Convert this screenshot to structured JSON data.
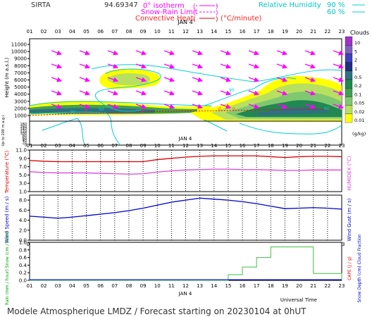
{
  "header": {
    "station": "SIRTA",
    "coord": "94.69347",
    "legend_isotherm": "0° isotherm",
    "legend_snow": "Snow-Rain Limit",
    "legend_conv": "Convective Heat.",
    "legend_unit": "(°C/minute)",
    "legend_rh": "Relative Humidity",
    "rh90": "90 %",
    "rh60": "60 %"
  },
  "hours": [
    "01",
    "02",
    "03",
    "04",
    "05",
    "06",
    "07",
    "08",
    "09",
    "10",
    "11",
    "12",
    "13",
    "14",
    "15",
    "16",
    "17",
    "18",
    "19",
    "20",
    "21",
    "22",
    "23"
  ],
  "date_label": "JAN 4",
  "footer": "Modele Atmospherique LMDZ / Forecast starting on 20230104 at 0hUT",
  "colors": {
    "temperature": "#dd0000",
    "humidex": "#dd44dd",
    "wind_speed": "#0000cc",
    "cloud_scale": [
      "#ffff00",
      "#b8e060",
      "#80c870",
      "#40a050",
      "#208850",
      "#307080",
      "#203080",
      "#4040c0",
      "#8060c0",
      "#a030d0"
    ],
    "isotherm": "#ff0000",
    "snow_rain": "#ff00ff",
    "rh": "#00d0d0",
    "precip": "#40c040"
  },
  "chart_data": [
    {
      "type": "heatmap",
      "name": "clouds",
      "xlabel": "",
      "ylabel": "Height (m a.s.l.)",
      "ylabel2": "Up to 200 m a.g.l.",
      "yticks": [
        1000,
        2000,
        3000,
        4000,
        5000,
        6000,
        7000,
        8000,
        9000,
        10000,
        11000
      ],
      "yticks_low": [
        0,
        20,
        40,
        60,
        80,
        100,
        120,
        140,
        160,
        180
      ],
      "colorbar_title": "Clouds",
      "colorbar_unit": "(g/kg)",
      "colorbar_levels": [
        "0.01",
        "0.02",
        "0.05",
        "0.1",
        "0.2",
        "0.5",
        "1",
        "2",
        "5",
        "10"
      ],
      "isotherm_labels": [
        "0",
        "0",
        "0",
        "0",
        "0"
      ],
      "rh_labels": [
        "90",
        "60",
        "90",
        "60"
      ]
    },
    {
      "type": "line",
      "name": "temperature",
      "ylabel": "Temperature (°C)",
      "ylabel2": "HUMIDEX (°C)",
      "yticks": [
        "1.0",
        "3.0",
        "5.0",
        "7.0",
        "9.0",
        "11.0"
      ],
      "ylim": [
        1,
        11
      ],
      "series": [
        {
          "name": "Temperature",
          "x": [
            1,
            2,
            3,
            4,
            5,
            6,
            7,
            8,
            9,
            10,
            11,
            12,
            13,
            14,
            15,
            16,
            17,
            18,
            19,
            20,
            21,
            22,
            23
          ],
          "values": [
            8.5,
            8.3,
            8.2,
            8.2,
            8.2,
            8.2,
            8.2,
            8.2,
            8.2,
            8.7,
            9.0,
            9.3,
            9.5,
            9.6,
            9.6,
            9.6,
            9.6,
            9.4,
            9.2,
            9.4,
            9.5,
            9.5,
            9.4
          ]
        },
        {
          "name": "Humidex",
          "x": [
            1,
            2,
            3,
            4,
            5,
            6,
            7,
            8,
            9,
            10,
            11,
            12,
            13,
            14,
            15,
            16,
            17,
            18,
            19,
            20,
            21,
            22,
            23
          ],
          "values": [
            5.8,
            5.6,
            5.5,
            5.5,
            5.5,
            5.4,
            5.3,
            5.2,
            5.3,
            5.7,
            6.0,
            6.2,
            6.3,
            6.4,
            6.4,
            6.3,
            6.3,
            6.2,
            6.1,
            6.1,
            6.2,
            6.2,
            6.2
          ]
        }
      ]
    },
    {
      "type": "line",
      "name": "wind",
      "ylabel": "Wind Speed (m / s)",
      "ylabel2": "Wind Gust (m / s)",
      "yticks": [
        "0.0",
        "2.0",
        "4.0",
        "6.0",
        "8.0"
      ],
      "ylim": [
        0,
        9
      ],
      "series": [
        {
          "name": "Wind Speed",
          "x": [
            1,
            2,
            3,
            4,
            5,
            6,
            7,
            8,
            9,
            10,
            11,
            12,
            13,
            14,
            15,
            16,
            17,
            18,
            19,
            20,
            21,
            22,
            23
          ],
          "values": [
            4.8,
            4.6,
            4.4,
            4.6,
            4.9,
            5.2,
            5.5,
            5.9,
            6.4,
            7.0,
            7.6,
            8.0,
            8.4,
            8.2,
            8.0,
            7.7,
            7.3,
            6.8,
            6.3,
            6.4,
            6.5,
            6.4,
            6.2
          ]
        }
      ]
    },
    {
      "type": "bar",
      "name": "precip",
      "ylabel": "Rain (mm / hour) Snow (cm / hour)",
      "ylabel2": "CAPE (J / g)",
      "ylabel3": "Snow Depth (cm) Cloud Fraction",
      "yticks": [
        "0.0",
        "0.2",
        "0.4",
        "0.6",
        "0.8",
        "1.0"
      ],
      "ylim": [
        0,
        1
      ],
      "series": [
        {
          "name": "Cloud Fraction",
          "x": [
            1,
            2,
            3,
            4,
            5,
            6,
            7,
            8,
            9,
            10,
            11,
            12,
            13,
            14,
            15,
            16,
            17,
            18,
            19,
            20,
            21,
            22,
            23
          ],
          "values": [
            0,
            0,
            0,
            0,
            0,
            0,
            0,
            0,
            0,
            0,
            0,
            0,
            0,
            0,
            0,
            0.15,
            0.35,
            0.6,
            0.88,
            0.88,
            0.88,
            0.18,
            0.18
          ]
        }
      ],
      "xlabel": "Universal Time"
    }
  ]
}
